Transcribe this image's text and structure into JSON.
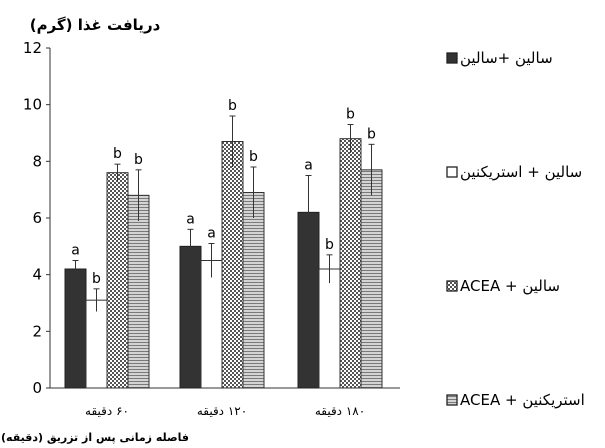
{
  "chart_data": {
    "type": "bar",
    "title": "دریافت غذا (گرم)",
    "xlabel": "فاصله زمانی پس از تزریق (دقیقه)",
    "ylabel": "",
    "ylim": [
      0,
      12
    ],
    "yticks": [
      0,
      2,
      4,
      6,
      8,
      10,
      12
    ],
    "ytick_labels": [
      "0",
      "2",
      "4",
      "6",
      "8",
      "10",
      "12"
    ],
    "grid": false,
    "legend_position": "right",
    "categories": [
      "۶۰ دقیقه",
      "۱۲۰ دقیقه",
      "۱۸۰ دقیقه"
    ],
    "series": [
      {
        "name": "سالین +سالین",
        "values": [
          4.2,
          5.0,
          6.2
        ],
        "errors": [
          0.3,
          0.6,
          1.3
        ],
        "labels": [
          "a",
          "a",
          "a"
        ],
        "fill": "#333333",
        "pattern": "solid"
      },
      {
        "name": "سالین + استریکنین",
        "values": [
          3.1,
          4.5,
          4.2
        ],
        "errors": [
          0.4,
          0.6,
          0.5
        ],
        "labels": [
          "b",
          "a",
          "b"
        ],
        "fill": "#ffffff",
        "pattern": "empty"
      },
      {
        "name": "ACEA + سالین",
        "values": [
          7.6,
          8.7,
          8.8
        ],
        "errors": [
          0.3,
          0.9,
          0.5
        ],
        "labels": [
          "b",
          "b",
          "b"
        ],
        "fill": "#9a9a9a",
        "pattern": "checker"
      },
      {
        "name": "ACEA + استریکنین",
        "values": [
          6.8,
          6.9,
          7.7
        ],
        "errors": [
          0.9,
          0.9,
          0.9
        ],
        "labels": [
          "b",
          "b",
          "b"
        ],
        "fill": "#bdbdbd",
        "pattern": "hlines"
      }
    ]
  }
}
